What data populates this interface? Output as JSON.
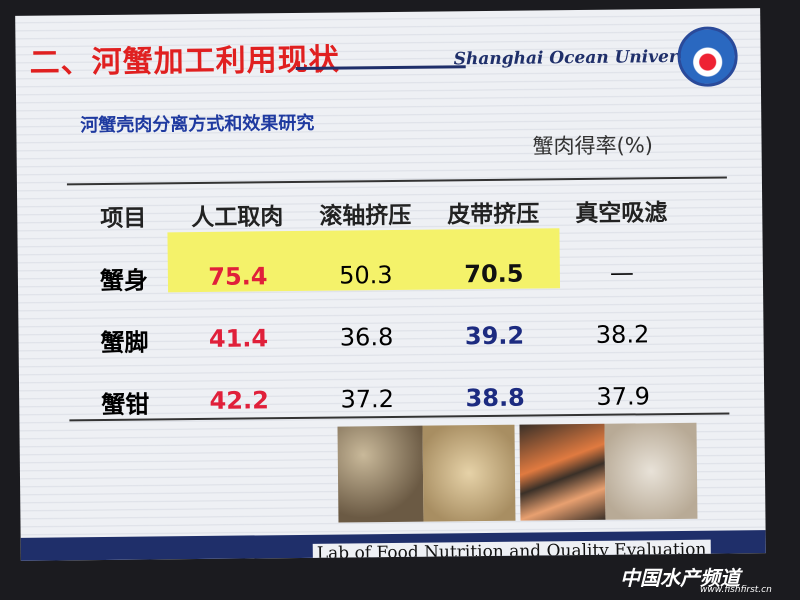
{
  "header": {
    "title": "二、河蟹加工利用现状",
    "university": "Shanghai Ocean University"
  },
  "subtitle": "河蟹壳肉分离方式和效果研究",
  "table": {
    "unit": "蟹肉得率(%)",
    "columns": [
      "项目",
      "人工取肉",
      "滚轴挤压",
      "皮带挤压",
      "真空吸滤"
    ],
    "rows": [
      [
        "蟹身",
        75.4,
        50.3,
        70.5,
        "—"
      ],
      [
        "蟹脚",
        41.4,
        36.8,
        39.2,
        38.2
      ],
      [
        "蟹钳",
        42.2,
        37.2,
        38.8,
        37.9
      ]
    ]
  },
  "footer": "Lab of Food Nutrition and Quality Evaluation",
  "watermark": {
    "name": "中国水产频道",
    "url": "www.fishfirst.cn"
  }
}
